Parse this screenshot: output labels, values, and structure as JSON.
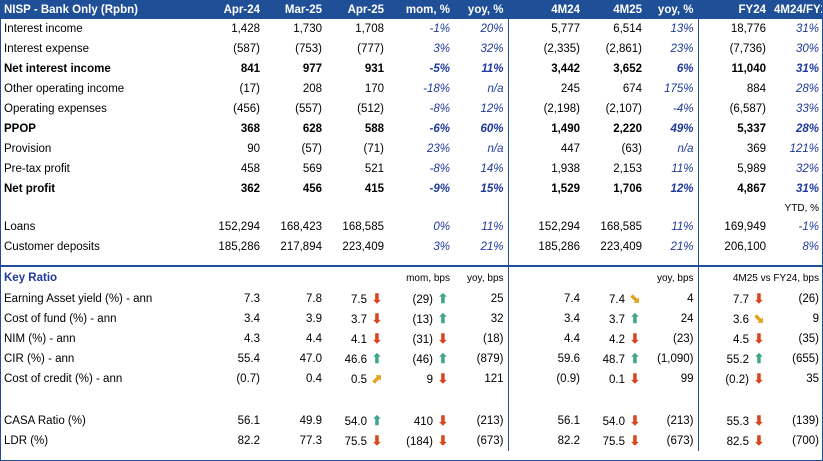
{
  "header": [
    "NISP - Bank Only (Rpbn)",
    "Apr-24",
    "Mar-25",
    "Apr-25",
    "mom, %",
    "yoy, %",
    "4M24",
    "4M25",
    "yoy, %",
    "FY24",
    "4M24/FY24"
  ],
  "pnl_rows": [
    {
      "label": "Interest income",
      "bold": false,
      "v": [
        "1,428",
        "1,730",
        "1,708",
        "-1%",
        "20%",
        "5,777",
        "6,514",
        "13%",
        "18,776",
        "31%"
      ]
    },
    {
      "label": "Interest expense",
      "bold": false,
      "v": [
        "(587)",
        "(753)",
        "(777)",
        "3%",
        "32%",
        "(2,335)",
        "(2,861)",
        "23%",
        "(7,736)",
        "30%"
      ]
    },
    {
      "label": "Net interest income",
      "bold": true,
      "v": [
        "841",
        "977",
        "931",
        "-5%",
        "11%",
        "3,442",
        "3,652",
        "6%",
        "11,040",
        "31%"
      ]
    },
    {
      "label": "Other operating income",
      "bold": false,
      "v": [
        "(17)",
        "208",
        "170",
        "-18%",
        "n/a",
        "245",
        "674",
        "175%",
        "884",
        "28%"
      ]
    },
    {
      "label": "Operating expenses",
      "bold": false,
      "v": [
        "(456)",
        "(557)",
        "(512)",
        "-8%",
        "12%",
        "(2,198)",
        "(2,107)",
        "-4%",
        "(6,587)",
        "33%"
      ]
    },
    {
      "label": "PPOP",
      "bold": true,
      "v": [
        "368",
        "628",
        "588",
        "-6%",
        "60%",
        "1,490",
        "2,220",
        "49%",
        "5,337",
        "28%"
      ]
    },
    {
      "label": "Provision",
      "bold": false,
      "v": [
        "90",
        "(57)",
        "(71)",
        "23%",
        "n/a",
        "447",
        "(63)",
        "n/a",
        "369",
        "121%"
      ]
    },
    {
      "label": "Pre-tax profit",
      "bold": false,
      "v": [
        "458",
        "569",
        "521",
        "-8%",
        "14%",
        "1,938",
        "2,153",
        "11%",
        "5,989",
        "32%"
      ]
    },
    {
      "label": "Net profit",
      "bold": true,
      "v": [
        "362",
        "456",
        "415",
        "-9%",
        "15%",
        "1,529",
        "1,706",
        "12%",
        "4,867",
        "31%"
      ]
    }
  ],
  "ytd_label": "YTD, %",
  "bs_rows": [
    {
      "label": "Loans",
      "v": [
        "152,294",
        "168,423",
        "168,585",
        "0%",
        "11%",
        "152,294",
        "168,585",
        "11%",
        "169,949",
        "-1%"
      ]
    },
    {
      "label": "Customer deposits",
      "v": [
        "185,286",
        "217,894",
        "223,409",
        "3%",
        "21%",
        "185,286",
        "223,409",
        "21%",
        "206,100",
        "8%"
      ]
    }
  ],
  "key_ratio": {
    "title": "Key Ratio",
    "mom_label": "mom, bps",
    "yoy_label": "yoy, bps",
    "yoy2_label": "yoy, bps",
    "fy_label": "4M25 vs FY24, bps"
  },
  "ratio_rows": [
    {
      "label": "Earning Asset yield (%) - ann",
      "v": [
        "7.3",
        "7.8",
        "7.5"
      ],
      "a1": "down",
      "mom": "(29)",
      "a2": "up",
      "yoy": "25",
      "m1": "7.4",
      "m2": "7.4",
      "a3": "diag-down",
      "yoy2": "4",
      "fy": "7.7",
      "a4": "down",
      "fyd": "(26)"
    },
    {
      "label": "Cost of fund (%) - ann",
      "v": [
        "3.4",
        "3.9",
        "3.7"
      ],
      "a1": "down",
      "mom": "(13)",
      "a2": "up",
      "yoy": "32",
      "m1": "3.4",
      "m2": "3.7",
      "a3": "up",
      "yoy2": "24",
      "fy": "3.6",
      "a4": "diag-down",
      "fyd": "9"
    },
    {
      "label": "NIM (%) - ann",
      "v": [
        "4.3",
        "4.4",
        "4.1"
      ],
      "a1": "down",
      "mom": "(31)",
      "a2": "down",
      "yoy": "(18)",
      "m1": "4.4",
      "m2": "4.2",
      "a3": "down",
      "yoy2": "(23)",
      "fy": "4.5",
      "a4": "down",
      "fyd": "(35)"
    },
    {
      "label": "CIR (%) - ann",
      "v": [
        "55.4",
        "47.0",
        "46.6"
      ],
      "a1": "up",
      "mom": "(46)",
      "a2": "up",
      "yoy": "(879)",
      "m1": "59.6",
      "m2": "48.7",
      "a3": "up",
      "yoy2": "(1,090)",
      "fy": "55.2",
      "a4": "up",
      "fyd": "(655)"
    },
    {
      "label": "Cost of credit (%) - ann",
      "v": [
        "(0.7)",
        "0.4",
        "0.5"
      ],
      "a1": "diag-up",
      "mom": "9",
      "a2": "down",
      "yoy": "121",
      "m1": "(0.9)",
      "m2": "0.1",
      "a3": "down",
      "yoy2": "99",
      "fy": "(0.2)",
      "a4": "down",
      "fyd": "35"
    }
  ],
  "ratio_rows2": [
    {
      "label": "CASA Ratio (%)",
      "v": [
        "56.1",
        "49.9",
        "54.0"
      ],
      "a1": "up",
      "mom": "410",
      "a2": "down",
      "yoy": "(213)",
      "m1": "56.1",
      "m2": "54.0",
      "a3": "down",
      "yoy2": "(213)",
      "fy": "55.3",
      "a4": "down",
      "fyd": "(139)"
    },
    {
      "label": "LDR (%)",
      "v": [
        "82.2",
        "77.3",
        "75.5"
      ],
      "a1": "down",
      "mom": "(184)",
      "a2": "down",
      "yoy": "(673)",
      "m1": "82.2",
      "m2": "75.5",
      "a3": "down",
      "yoy2": "(673)",
      "fy": "82.5",
      "a4": "down",
      "fyd": "(700)"
    }
  ]
}
